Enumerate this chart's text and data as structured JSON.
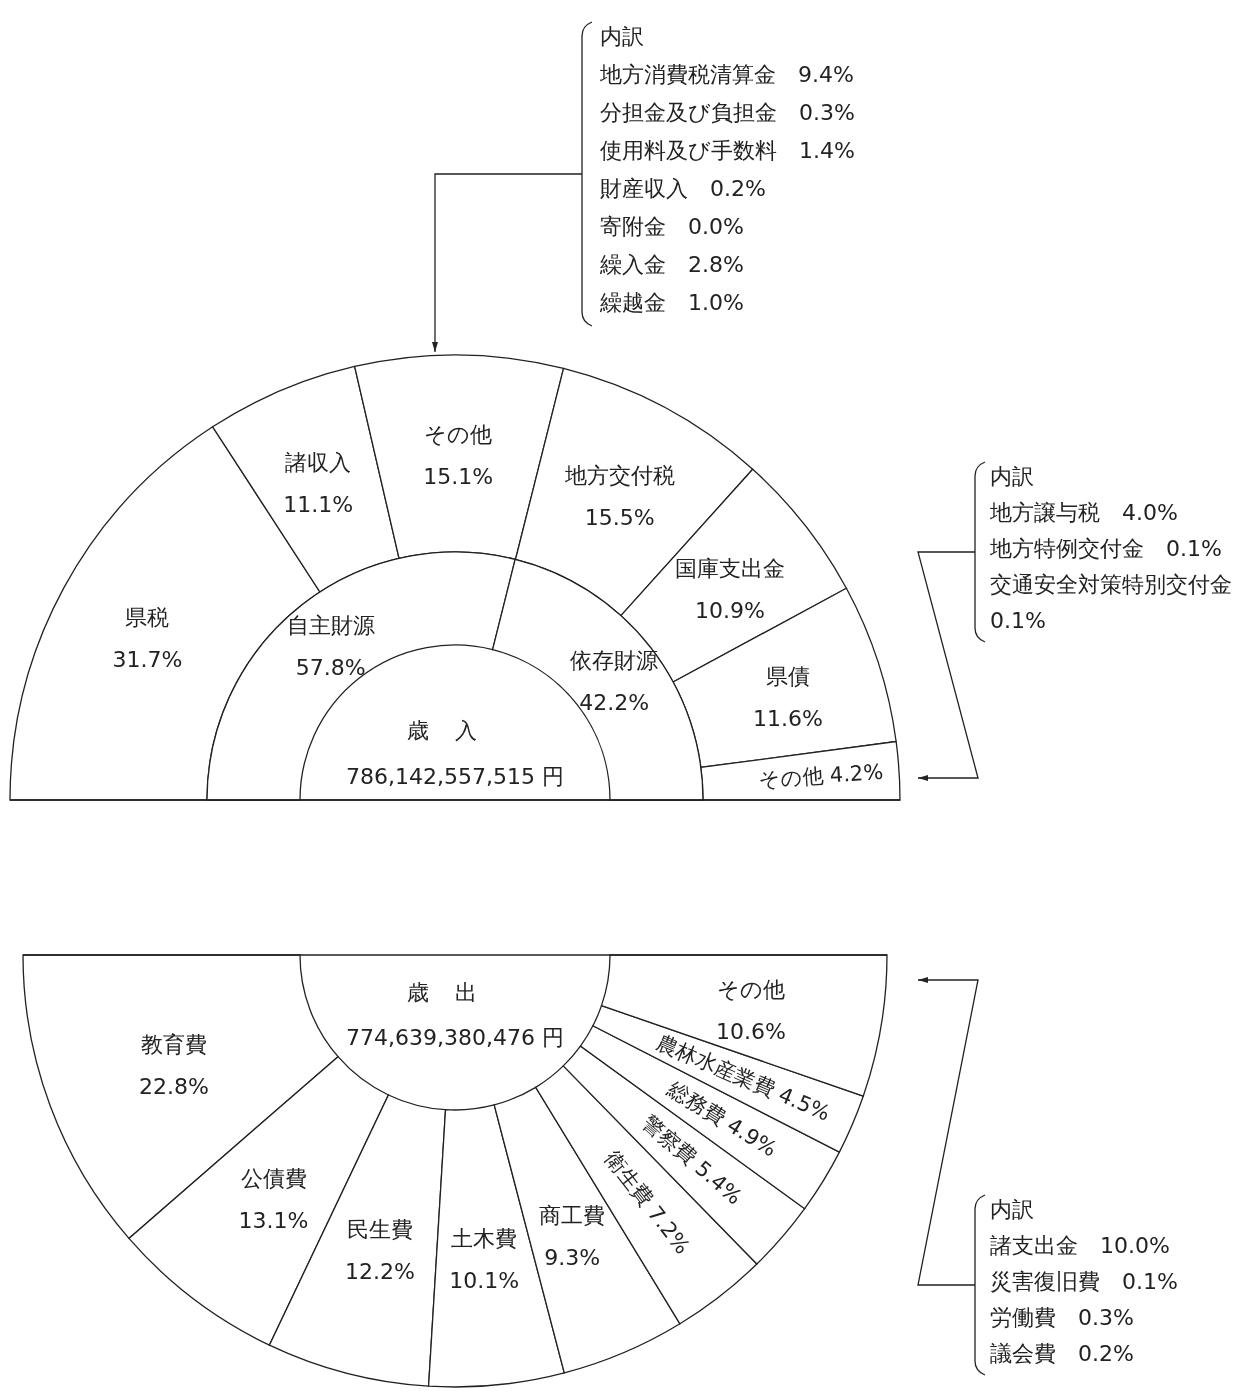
{
  "chart_data": [
    {
      "type": "donut",
      "categories": [
        "県税",
        "諸収入",
        "その他",
        "地方交付税",
        "国庫支出金",
        "県債",
        "その他"
      ],
      "values": [
        31.7,
        11.1,
        15.1,
        15.5,
        10.9,
        11.6,
        4.2
      ],
      "colors": [
        "#ffffff",
        "#ffffff",
        "#ffffff",
        "#ffffff",
        "#ffffff",
        "#ffffff",
        "#ffffff"
      ],
      "value_labels": [
        "31.7%",
        "11.1%",
        "15.1%",
        "15.5%",
        "10.9%",
        "11.6%",
        "4.2%"
      ]
    },
    {
      "type": "donut",
      "title": "歳入",
      "subtitle": "786,142,557,515 円",
      "categories": [
        "自主財源",
        "依存財源"
      ],
      "values": [
        57.8,
        42.2
      ],
      "colors": [
        "#ffffff",
        "#ffffff"
      ],
      "value_labels": [
        "57.8%",
        "42.2%"
      ]
    },
    {
      "type": "other",
      "title": "内訳",
      "annotations": [
        "地方消費税清算金　9.4%",
        "分担金及び負担金　0.3%",
        "使用料及び手数料　1.4%",
        "財産収入　0.2%",
        "寄附金　0.0%",
        "繰入金　2.8%",
        "繰越金　1.0%"
      ]
    },
    {
      "type": "other",
      "title": "内訳",
      "annotations": [
        "地方譲与税　4.0%",
        "地方特例交付金　0.1%",
        "交通安全対策特別交付金　0.1%"
      ]
    },
    {
      "type": "donut",
      "title": "歳出",
      "subtitle": "774,639,380,476 円",
      "categories": [
        "教育費",
        "公債費",
        "民生費",
        "土木費",
        "商工費",
        "衛生費",
        "警察費",
        "総務費",
        "農林水産業費",
        "その他"
      ],
      "values": [
        22.8,
        13.1,
        12.2,
        10.1,
        9.3,
        7.2,
        5.4,
        4.9,
        4.5,
        10.6
      ],
      "colors": [
        "#ffffff",
        "#ffffff",
        "#ffffff",
        "#ffffff",
        "#ffffff",
        "#ffffff",
        "#ffffff",
        "#ffffff",
        "#ffffff",
        "#ffffff"
      ],
      "value_labels": [
        "22.8%",
        "13.1%",
        "12.2%",
        "10.1%",
        "9.3%",
        "7.2%",
        "5.4%",
        "4.9%",
        "4.5%",
        "10.6%"
      ]
    },
    {
      "type": "other",
      "title": "内訳",
      "annotations": [
        "諸支出金　10.0%",
        "災害復旧費　0.1%",
        "労働費　0.3%",
        "議会費　0.2%"
      ]
    }
  ]
}
